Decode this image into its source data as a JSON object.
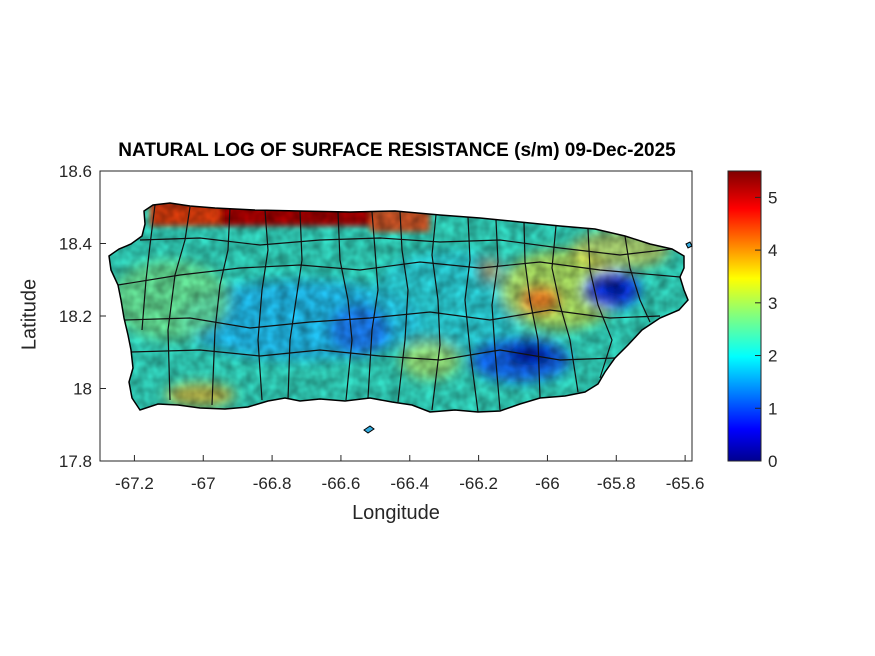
{
  "figure": {
    "title": "NATURAL LOG OF SURFACE RESISTANCE (s/m) 09-Dec-2025",
    "xlabel": "Longitude",
    "ylabel": "Latitude"
  },
  "map": {
    "region": "Puerto Rico",
    "projection": "lon-lat",
    "xlim": [
      -67.3,
      -65.58
    ],
    "ylim": [
      17.8,
      18.6
    ],
    "xticks": [
      "-67.2",
      "-67",
      "-66.8",
      "-66.6",
      "-66.4",
      "-66.2",
      "-66",
      "-65.8",
      "-65.6"
    ],
    "yticks": [
      "18.6",
      "18.4",
      "18.2",
      "18",
      "17.8"
    ],
    "features": [
      "municipality-boundaries",
      "coastline",
      "raster-field"
    ]
  },
  "colorbar": {
    "colormap": "jet",
    "range": [
      0,
      5.5
    ],
    "ticks": [
      "5",
      "4",
      "3",
      "2",
      "1",
      "0"
    ],
    "colors": [
      "#00008f",
      "#0000ff",
      "#0080ff",
      "#00ffff",
      "#80ff80",
      "#ffff00",
      "#ff8000",
      "#ff0000",
      "#800000"
    ]
  }
}
